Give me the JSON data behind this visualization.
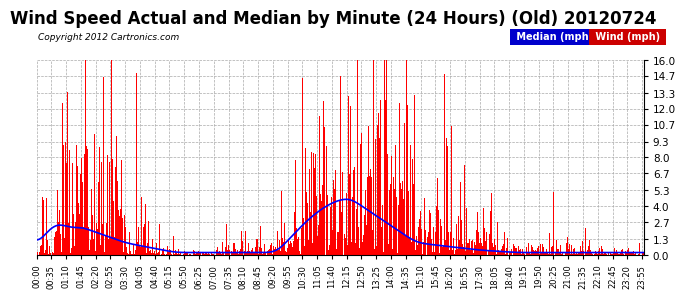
{
  "title": "Wind Speed Actual and Median by Minute (24 Hours) (Old) 20120724",
  "copyright": "Copyright 2012 Cartronics.com",
  "yticks": [
    0.0,
    1.3,
    2.7,
    4.0,
    5.3,
    6.7,
    8.0,
    9.3,
    10.7,
    12.0,
    13.3,
    14.7,
    16.0
  ],
  "ymax": 16.0,
  "ymin": 0.0,
  "background_color": "#ffffff",
  "plot_bg_color": "#ffffff",
  "grid_color": "#aaaaaa",
  "wind_color": "#ff0000",
  "median_color": "#0000ff",
  "title_fontsize": 12,
  "legend_median_color": "#0000cc",
  "legend_wind_color": "#cc0000",
  "num_minutes": 1440,
  "random_seed": 42,
  "tick_interval": 35
}
